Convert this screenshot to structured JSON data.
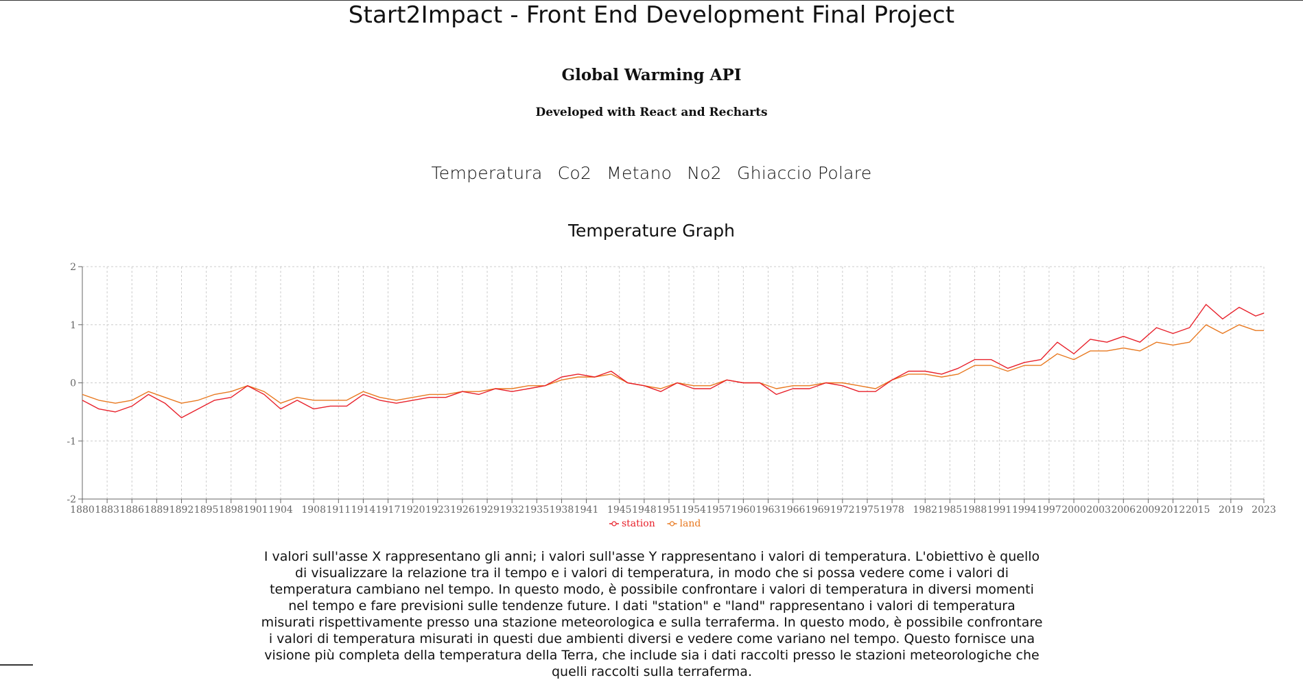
{
  "header": {
    "title": "Start2Impact - Front End Development Final Project",
    "subtitle": "Global Warming API",
    "tagline": "Developed with React and Recharts"
  },
  "nav": {
    "items": [
      "Temperatura",
      "Co2",
      "Metano",
      "No2",
      "Ghiaccio Polare"
    ]
  },
  "colors": {
    "station": "#e8202a",
    "land": "#e8781f",
    "grid": "#cccccc",
    "axis": "#666666"
  },
  "description": "I valori sull'asse X rappresentano gli anni; i valori sull'asse Y rappresentano i valori di temperatura. L'obiettivo è quello di visualizzare la relazione tra il tempo e i valori di temperatura, in modo che si possa vedere come i valori di temperatura cambiano nel tempo. In questo modo, è possibile confrontare i valori di temperatura in diversi momenti nel tempo e fare previsioni sulle tendenze future. I dati \"station\" e \"land\" rappresentano i valori di temperatura misurati rispettivamente presso una stazione meteorologica e sulla terraferma. In questo modo, è possibile confrontare i valori di temperatura misurati in questi due ambienti diversi e vedere come variano nel tempo. Questo fornisce una visione più completa della temperatura della Terra, che include sia i dati raccolti presso le stazioni meteorologiche che quelli raccolti sulla terraferma.",
  "chart_data": {
    "type": "line",
    "title": "Temperature Graph",
    "xlabel": "",
    "ylabel": "",
    "ylim": [
      -2,
      2
    ],
    "yticks": [
      -2,
      -1,
      0,
      1,
      2
    ],
    "xlim": [
      1880,
      2023
    ],
    "xticks": [
      1880,
      1883,
      1886,
      1889,
      1892,
      1895,
      1898,
      1901,
      1904,
      1908,
      1911,
      1914,
      1917,
      1920,
      1923,
      1926,
      1929,
      1932,
      1935,
      1938,
      1941,
      1945,
      1948,
      1951,
      1954,
      1957,
      1960,
      1963,
      1966,
      1969,
      1972,
      1975,
      1978,
      1982,
      1985,
      1988,
      1991,
      1994,
      1997,
      2000,
      2003,
      2006,
      2009,
      2012,
      2015,
      2019,
      2023
    ],
    "grid": true,
    "legend": "bottom-center",
    "x": [
      1880,
      1882,
      1884,
      1886,
      1888,
      1890,
      1892,
      1894,
      1896,
      1898,
      1900,
      1902,
      1904,
      1906,
      1908,
      1910,
      1912,
      1914,
      1916,
      1918,
      1920,
      1922,
      1924,
      1926,
      1928,
      1930,
      1932,
      1934,
      1936,
      1938,
      1940,
      1942,
      1944,
      1946,
      1948,
      1950,
      1952,
      1954,
      1956,
      1958,
      1960,
      1962,
      1964,
      1966,
      1968,
      1970,
      1972,
      1974,
      1976,
      1978,
      1980,
      1982,
      1984,
      1986,
      1988,
      1990,
      1992,
      1994,
      1996,
      1998,
      2000,
      2002,
      2004,
      2006,
      2008,
      2010,
      2012,
      2014,
      2016,
      2018,
      2020,
      2022,
      2023
    ],
    "series": [
      {
        "name": "station",
        "values": [
          -0.3,
          -0.45,
          -0.5,
          -0.4,
          -0.2,
          -0.35,
          -0.6,
          -0.45,
          -0.3,
          -0.25,
          -0.05,
          -0.2,
          -0.45,
          -0.3,
          -0.45,
          -0.4,
          -0.4,
          -0.2,
          -0.3,
          -0.35,
          -0.3,
          -0.25,
          -0.25,
          -0.15,
          -0.2,
          -0.1,
          -0.15,
          -0.1,
          -0.05,
          0.1,
          0.15,
          0.1,
          0.2,
          0.0,
          -0.05,
          -0.15,
          0.0,
          -0.1,
          -0.1,
          0.05,
          0.0,
          0.0,
          -0.2,
          -0.1,
          -0.1,
          0.0,
          -0.05,
          -0.15,
          -0.15,
          0.05,
          0.2,
          0.2,
          0.15,
          0.25,
          0.4,
          0.4,
          0.25,
          0.35,
          0.4,
          0.7,
          0.5,
          0.75,
          0.7,
          0.8,
          0.7,
          0.95,
          0.85,
          0.95,
          1.35,
          1.1,
          1.3,
          1.15,
          1.2
        ]
      },
      {
        "name": "land",
        "values": [
          -0.2,
          -0.3,
          -0.35,
          -0.3,
          -0.15,
          -0.25,
          -0.35,
          -0.3,
          -0.2,
          -0.15,
          -0.05,
          -0.15,
          -0.35,
          -0.25,
          -0.3,
          -0.3,
          -0.3,
          -0.15,
          -0.25,
          -0.3,
          -0.25,
          -0.2,
          -0.2,
          -0.15,
          -0.15,
          -0.1,
          -0.1,
          -0.05,
          -0.05,
          0.05,
          0.1,
          0.1,
          0.15,
          0.0,
          -0.05,
          -0.1,
          0.0,
          -0.05,
          -0.05,
          0.05,
          0.0,
          0.0,
          -0.1,
          -0.05,
          -0.05,
          0.0,
          0.0,
          -0.05,
          -0.1,
          0.05,
          0.15,
          0.15,
          0.1,
          0.15,
          0.3,
          0.3,
          0.2,
          0.3,
          0.3,
          0.5,
          0.4,
          0.55,
          0.55,
          0.6,
          0.55,
          0.7,
          0.65,
          0.7,
          1.0,
          0.85,
          1.0,
          0.9,
          0.9
        ]
      }
    ]
  }
}
